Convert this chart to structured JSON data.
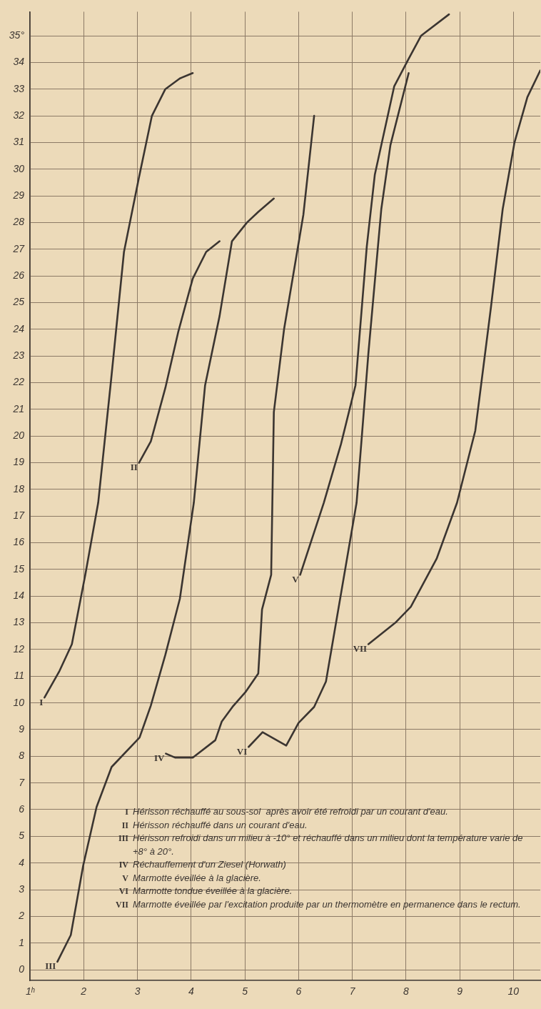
{
  "chart_data": {
    "type": "line",
    "xlim": [
      1,
      10.5
    ],
    "ylim": [
      -0.4,
      35.9
    ],
    "xticks": [
      {
        "value": 1,
        "label": "1ʰ"
      },
      2,
      3,
      4,
      5,
      6,
      7,
      8,
      9,
      10
    ],
    "yticks": [
      0,
      1,
      2,
      3,
      4,
      5,
      6,
      7,
      8,
      9,
      10,
      11,
      12,
      13,
      14,
      15,
      16,
      17,
      18,
      19,
      20,
      21,
      22,
      23,
      24,
      25,
      26,
      27,
      28,
      29,
      30,
      31,
      32,
      33,
      34,
      {
        "value": 35,
        "label": "35°"
      }
    ],
    "grid": true,
    "legend": false,
    "series": [
      {
        "name": "I",
        "color": "#3b3531",
        "x": [
          1.27,
          1.55,
          1.78,
          2.03,
          2.27,
          2.51,
          2.75,
          3.03,
          3.27,
          3.52,
          3.79,
          4.03
        ],
        "values": [
          10.2,
          11.2,
          12.2,
          14.8,
          17.5,
          22.1,
          26.9,
          29.7,
          32.0,
          33.0,
          33.4,
          33.6
        ]
      },
      {
        "name": "II",
        "color": "#3b3531",
        "x": [
          3.03,
          3.25,
          3.52,
          3.76,
          4.03,
          4.28,
          4.53
        ],
        "values": [
          19.0,
          19.8,
          21.8,
          23.9,
          25.9,
          26.9,
          27.3
        ]
      },
      {
        "name": "III",
        "color": "#3b3531",
        "x": [
          1.51,
          1.76,
          1.99,
          2.24,
          2.52,
          3.04,
          3.25,
          3.52,
          3.79,
          4.05,
          4.26,
          4.53,
          4.76,
          5.04,
          5.25,
          5.54
        ],
        "values": [
          0.3,
          1.3,
          3.9,
          6.1,
          7.6,
          8.7,
          9.9,
          11.8,
          13.9,
          17.5,
          21.9,
          24.5,
          27.3,
          28.0,
          28.4,
          28.9
        ]
      },
      {
        "name": "IV",
        "color": "#3b3531",
        "x": [
          3.53,
          3.7,
          4.03,
          4.45,
          4.57,
          4.77,
          5.01,
          5.25,
          5.32,
          5.49,
          5.54,
          5.73,
          6.09,
          6.29
        ],
        "values": [
          8.1,
          7.95,
          7.95,
          8.6,
          9.3,
          9.85,
          10.4,
          11.1,
          13.5,
          14.8,
          20.9,
          24.0,
          28.3,
          32.0
        ]
      },
      {
        "name": "V",
        "color": "#3b3531",
        "x": [
          6.03,
          6.47,
          6.79,
          7.06,
          7.27,
          7.42,
          7.78,
          8.04,
          8.28,
          8.8
        ],
        "values": [
          14.8,
          17.5,
          19.7,
          21.9,
          27.1,
          29.8,
          33.1,
          34.1,
          35.0,
          35.8
        ]
      },
      {
        "name": "VI",
        "color": "#3b3531",
        "x": [
          5.07,
          5.33,
          5.77,
          6.0,
          6.29,
          6.51,
          7.08,
          7.3,
          7.54,
          7.71,
          8.05
        ],
        "values": [
          8.35,
          8.9,
          8.4,
          9.25,
          9.85,
          10.8,
          17.5,
          23.1,
          28.5,
          30.9,
          33.6
        ]
      },
      {
        "name": "VII",
        "color": "#3b3531",
        "x": [
          7.3,
          7.8,
          8.09,
          8.57,
          8.95,
          9.29,
          9.58,
          9.8,
          10.02,
          10.26,
          10.5
        ],
        "values": [
          12.2,
          13.0,
          13.6,
          15.4,
          17.5,
          20.2,
          24.8,
          28.5,
          31.0,
          32.7,
          33.7
        ]
      }
    ],
    "annotations": [
      "I Hérisson réchauffé au sous-sol  après avoir été refroidi par un courant d'eau.",
      "II Hérisson réchauffé dans un courant d'eau.",
      "III Hérisson refroidi dans un milieu à -10° et réchauffé dans un milieu dont la température varie de +8° à 20°.",
      "IV Réchauffement d'un Ziesel (Horwath)",
      "V Marmotte éveillée à la glacière.",
      "VI Marmotte tondue éveillée à la glacière.",
      "VII Marmotte éveillée par l'excitation produite par un thermomètre en permanence dans le rectum."
    ]
  }
}
